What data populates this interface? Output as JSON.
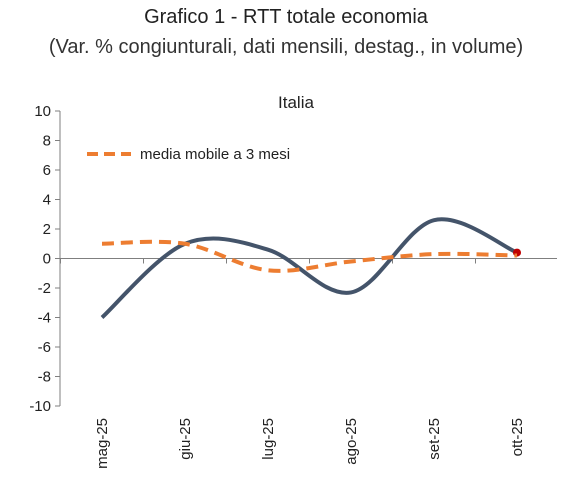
{
  "chart_data": {
    "type": "line",
    "title": "Grafico 1 - RTT totale economia",
    "subtitle": "(Var. % congiunturali, dati mensili, destag., in volume)",
    "panel_label": "Italia",
    "categories": [
      "mag-25",
      "giu-25",
      "lug-25",
      "ago-25",
      "set-25",
      "ott-25"
    ],
    "series": [
      {
        "values": [
          -4.0,
          1.0,
          0.6,
          -2.3,
          2.6,
          0.4
        ],
        "color": "#44546a",
        "style": "solid",
        "last_point_marker_color": "#c00000"
      },
      {
        "name": "media mobile a 3 mesi",
        "values": [
          1.0,
          1.0,
          -0.8,
          -0.2,
          0.3,
          0.2
        ],
        "color": "#ed7d31",
        "style": "dashed"
      }
    ],
    "ylim": [
      -10,
      10
    ],
    "yticks": [
      -10,
      -8,
      -6,
      -4,
      -2,
      0,
      2,
      4,
      6,
      8,
      10
    ],
    "xlabel": "",
    "ylabel": "",
    "grid": false,
    "legend_position": "top-left"
  }
}
